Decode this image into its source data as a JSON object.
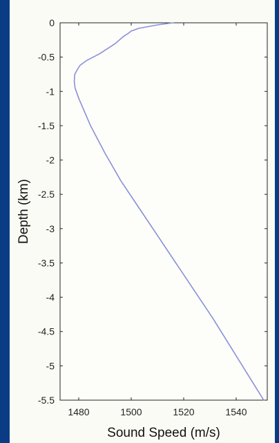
{
  "chart_data": {
    "type": "line",
    "title": "",
    "xlabel": "Sound Speed (m/s)",
    "ylabel": "Depth (km)",
    "xlim": [
      1470,
      1552
    ],
    "ylim": [
      -5.5,
      0
    ],
    "grid": false,
    "x_ticks": [
      1480,
      1500,
      1520,
      1540
    ],
    "x_tick_labels": [
      "1480",
      "1500",
      "1520",
      "1540"
    ],
    "y_ticks": [
      0,
      -0.5,
      -1,
      -1.5,
      -2,
      -2.5,
      -3,
      -3.5,
      -4,
      -4.5,
      -5,
      -5.5
    ],
    "y_tick_labels": [
      "0",
      "-0.5",
      "-1",
      "-1.5",
      "-2",
      "-2.5",
      "-3",
      "-3.5",
      "-4",
      "-4.5",
      "-5",
      "-5.5"
    ],
    "line_color": "#8a8fd8",
    "series": [
      {
        "x": [
          1516,
          1510,
          1503,
          1500,
          1499,
          1497,
          1494,
          1488,
          1483,
          1480.5,
          1479.5,
          1478.5,
          1478.3,
          1478.6,
          1480,
          1484.5,
          1490,
          1496,
          1503,
          1510,
          1517,
          1524,
          1531,
          1537.5,
          1544,
          1550.5
        ],
        "y": [
          0,
          -0.03,
          -0.08,
          -0.12,
          -0.15,
          -0.2,
          -0.3,
          -0.45,
          -0.55,
          -0.62,
          -0.68,
          -0.75,
          -0.85,
          -0.95,
          -1.1,
          -1.5,
          -1.9,
          -2.3,
          -2.7,
          -3.1,
          -3.5,
          -3.9,
          -4.3,
          -4.7,
          -5.1,
          -5.5
        ]
      }
    ]
  }
}
